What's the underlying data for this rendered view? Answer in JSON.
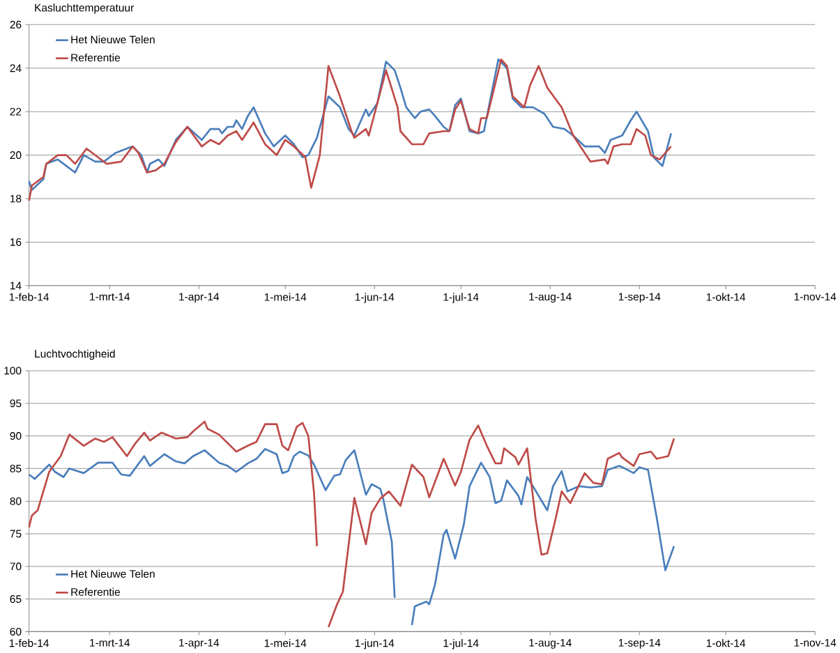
{
  "chart_data": [
    {
      "type": "line",
      "title": "Kasluchttemperatuur",
      "grid": "y",
      "legend": "top left",
      "xlim": [
        "2014-02-01",
        "2014-11-01"
      ],
      "xticks": [
        {
          "value": "2014-02-01",
          "label": "1-feb-14"
        },
        {
          "value": "2014-03-01",
          "label": "1-mrt-14"
        },
        {
          "value": "2014-04-01",
          "label": "1-apr-14"
        },
        {
          "value": "2014-05-01",
          "label": "1-mei-14"
        },
        {
          "value": "2014-06-01",
          "label": "1-jun-14"
        },
        {
          "value": "2014-07-01",
          "label": "1-jul-14"
        },
        {
          "value": "2014-08-01",
          "label": "1-aug-14"
        },
        {
          "value": "2014-09-01",
          "label": "1-sep-14"
        },
        {
          "value": "2014-10-01",
          "label": "1-okt-14"
        },
        {
          "value": "2014-11-01",
          "label": "1-nov-14"
        }
      ],
      "ylim": [
        14,
        26
      ],
      "yticks": [
        14,
        16,
        18,
        20,
        22,
        24,
        26
      ],
      "series": [
        {
          "name": "Het Nieuwe Telen",
          "color": "#4a7ebb",
          "x": [
            "2014-02-01",
            "2014-02-02",
            "2014-02-06",
            "2014-02-07",
            "2014-02-11",
            "2014-02-13",
            "2014-02-17",
            "2014-02-20",
            "2014-02-24",
            "2014-02-27",
            "2014-03-03",
            "2014-03-09",
            "2014-03-12",
            "2014-03-14",
            "2014-03-15",
            "2014-03-18",
            "2014-03-20",
            "2014-03-24",
            "2014-03-28",
            "2014-04-02",
            "2014-04-05",
            "2014-04-08",
            "2014-04-09",
            "2014-04-11",
            "2014-04-13",
            "2014-04-14",
            "2014-04-16",
            "2014-04-18",
            "2014-04-20",
            "2014-04-24",
            "2014-04-27",
            "2014-05-01",
            "2014-05-04",
            "2014-05-07",
            "2014-05-09",
            "2014-05-12",
            "2014-05-16",
            "2014-05-20",
            "2014-05-23",
            "2014-05-25",
            "2014-05-29",
            "2014-05-30",
            "2014-06-02",
            "2014-06-05",
            "2014-06-08",
            "2014-06-10",
            "2014-06-12",
            "2014-06-15",
            "2014-06-17",
            "2014-06-20",
            "2014-06-22",
            "2014-06-25",
            "2014-06-27",
            "2014-06-29",
            "2014-07-01",
            "2014-07-04",
            "2014-07-07",
            "2014-07-09",
            "2014-07-14",
            "2014-07-17",
            "2014-07-19",
            "2014-07-22",
            "2014-07-26",
            "2014-07-30",
            "2014-08-02",
            "2014-08-06",
            "2014-08-09",
            "2014-08-13",
            "2014-08-18",
            "2014-08-20",
            "2014-08-22",
            "2014-08-26",
            "2014-08-29",
            "2014-08-31",
            "2014-09-04",
            "2014-09-06",
            "2014-09-09",
            "2014-09-12"
          ],
          "values": [
            18.8,
            18.4,
            18.9,
            19.6,
            19.8,
            19.6,
            19.2,
            20.0,
            19.7,
            19.7,
            20.1,
            20.4,
            20.0,
            19.2,
            19.6,
            19.8,
            19.5,
            20.7,
            21.3,
            20.7,
            21.2,
            21.2,
            21.0,
            21.3,
            21.3,
            21.6,
            21.2,
            21.8,
            22.2,
            21.0,
            20.4,
            20.9,
            20.5,
            19.9,
            20.0,
            20.8,
            22.7,
            22.2,
            21.2,
            20.9,
            22.1,
            21.8,
            22.4,
            24.3,
            23.9,
            23.1,
            22.2,
            21.7,
            22.0,
            22.1,
            21.8,
            21.3,
            21.1,
            22.3,
            22.6,
            21.1,
            21.0,
            21.1,
            24.4,
            24.0,
            22.6,
            22.2,
            22.2,
            21.9,
            21.3,
            21.2,
            20.9,
            20.4,
            20.4,
            20.1,
            20.7,
            20.9,
            21.6,
            22.0,
            21.1,
            19.9,
            19.5,
            21.0
          ]
        },
        {
          "name": "Referentie",
          "color": "#be4b48",
          "x": [
            "2014-02-01",
            "2014-02-02",
            "2014-02-06",
            "2014-02-07",
            "2014-02-11",
            "2014-02-14",
            "2014-02-17",
            "2014-02-21",
            "2014-02-25",
            "2014-02-28",
            "2014-03-05",
            "2014-03-09",
            "2014-03-11",
            "2014-03-14",
            "2014-03-17",
            "2014-03-20",
            "2014-03-24",
            "2014-03-28",
            "2014-04-02",
            "2014-04-05",
            "2014-04-08",
            "2014-04-11",
            "2014-04-14",
            "2014-04-16",
            "2014-04-20",
            "2014-04-24",
            "2014-04-28",
            "2014-05-01",
            "2014-05-04",
            "2014-05-08",
            "2014-05-10",
            "2014-05-13",
            "2014-05-16",
            "2014-05-20",
            "2014-05-24",
            "2014-05-25",
            "2014-05-29",
            "2014-05-30",
            "2014-06-05",
            "2014-06-09",
            "2014-06-10",
            "2014-06-14",
            "2014-06-18",
            "2014-06-20",
            "2014-06-25",
            "2014-06-27",
            "2014-06-29",
            "2014-07-01",
            "2014-07-04",
            "2014-07-07",
            "2014-07-08",
            "2014-07-10",
            "2014-07-15",
            "2014-07-17",
            "2014-07-19",
            "2014-07-23",
            "2014-07-25",
            "2014-07-28",
            "2014-07-31",
            "2014-08-05",
            "2014-08-09",
            "2014-08-13",
            "2014-08-15",
            "2014-08-20",
            "2014-08-21",
            "2014-08-23",
            "2014-08-26",
            "2014-08-29",
            "2014-08-31",
            "2014-09-03",
            "2014-09-05",
            "2014-09-08",
            "2014-09-12"
          ],
          "values": [
            17.9,
            18.6,
            19.0,
            19.6,
            20.0,
            20.0,
            19.6,
            20.3,
            19.9,
            19.6,
            19.7,
            20.4,
            20.1,
            19.2,
            19.3,
            19.6,
            20.6,
            21.3,
            20.4,
            20.7,
            20.5,
            20.9,
            21.1,
            20.7,
            21.5,
            20.5,
            20.0,
            20.7,
            20.4,
            19.9,
            18.5,
            20.0,
            24.1,
            22.7,
            21.1,
            20.8,
            21.2,
            20.9,
            23.9,
            22.2,
            21.1,
            20.5,
            20.5,
            21.0,
            21.1,
            21.1,
            22.1,
            22.5,
            21.2,
            21.0,
            21.7,
            21.7,
            24.4,
            24.1,
            22.7,
            22.2,
            23.2,
            24.1,
            23.1,
            22.2,
            20.9,
            20.1,
            19.7,
            19.8,
            19.6,
            20.4,
            20.5,
            20.5,
            21.2,
            20.9,
            20.0,
            19.8,
            20.4
          ]
        }
      ]
    },
    {
      "type": "line",
      "title": "Luchtvochtigheid",
      "grid": "y",
      "legend": "bottom left",
      "xlim": [
        "2014-02-01",
        "2014-11-01"
      ],
      "xticks": [
        {
          "value": "2014-02-01",
          "label": "1-feb-14"
        },
        {
          "value": "2014-03-01",
          "label": "1-mrt-14"
        },
        {
          "value": "2014-04-01",
          "label": "1-apr-14"
        },
        {
          "value": "2014-05-01",
          "label": "1-mei-14"
        },
        {
          "value": "2014-06-01",
          "label": "1-jun-14"
        },
        {
          "value": "2014-07-01",
          "label": "1-jul-14"
        },
        {
          "value": "2014-08-01",
          "label": "1-aug-14"
        },
        {
          "value": "2014-09-01",
          "label": "1-sep-14"
        },
        {
          "value": "2014-10-01",
          "label": "1-okt-14"
        },
        {
          "value": "2014-11-01",
          "label": "1-nov-14"
        }
      ],
      "ylim": [
        60,
        100
      ],
      "yticks": [
        60,
        65,
        70,
        75,
        80,
        85,
        90,
        95,
        100
      ],
      "series": [
        {
          "name": "Het Nieuwe Telen",
          "color": "#4a7ebb",
          "x": [
            "2014-02-01",
            "2014-02-03",
            "2014-02-08",
            "2014-02-10",
            "2014-02-13",
            "2014-02-15",
            "2014-02-20",
            "2014-02-25",
            "2014-03-02",
            "2014-03-05",
            "2014-03-08",
            "2014-03-13",
            "2014-03-15",
            "2014-03-20",
            "2014-03-24",
            "2014-03-27",
            "2014-03-30",
            "2014-04-03",
            "2014-04-08",
            "2014-04-11",
            "2014-04-14",
            "2014-04-18",
            "2014-04-21",
            "2014-04-24",
            "2014-04-28",
            "2014-04-30",
            "2014-05-02",
            "2014-05-04",
            "2014-05-06",
            "2014-05-09",
            "2014-05-11",
            "2014-05-15",
            "2014-05-18",
            "2014-05-20",
            "2014-05-22",
            "2014-05-25",
            "2014-05-29",
            "2014-05-31",
            "2014-06-03",
            "2014-06-04",
            "2014-06-07",
            "2014-06-08",
            "2014-06-11",
            "2014-06-14",
            "2014-06-15",
            "2014-06-19",
            "2014-06-20",
            "2014-06-22",
            "2014-06-25",
            "2014-06-26",
            "2014-06-29",
            "2014-07-02",
            "2014-07-04",
            "2014-07-08",
            "2014-07-11",
            "2014-07-13",
            "2014-07-15",
            "2014-07-17",
            "2014-07-21",
            "2014-07-22",
            "2014-07-24",
            "2014-07-26",
            "2014-07-31",
            "2014-08-02",
            "2014-08-05",
            "2014-08-07",
            "2014-08-11",
            "2014-08-15",
            "2014-08-19",
            "2014-08-21",
            "2014-08-25",
            "2014-08-27",
            "2014-08-30",
            "2014-09-01",
            "2014-09-04",
            "2014-09-07",
            "2014-09-10",
            "2014-09-13"
          ],
          "values": [
            84.1,
            83.4,
            85.6,
            84.5,
            83.7,
            85.0,
            84.3,
            85.9,
            85.9,
            84.1,
            83.9,
            86.9,
            85.4,
            87.2,
            86.1,
            85.8,
            86.9,
            87.8,
            85.9,
            85.4,
            84.5,
            85.8,
            86.5,
            88.0,
            87.2,
            84.3,
            84.6,
            86.9,
            87.6,
            87.0,
            85.6,
            81.7,
            83.9,
            84.1,
            86.3,
            87.8,
            81.0,
            82.6,
            81.9,
            80.4,
            73.8,
            65.2,
            null,
            61.0,
            63.9,
            64.6,
            64.2,
            67.2,
            74.9,
            75.6,
            71.2,
            76.4,
            82.3,
            85.9,
            83.7,
            79.7,
            80.1,
            83.2,
            80.8,
            79.5,
            83.7,
            82.3,
            78.6,
            82.3,
            84.6,
            81.5,
            82.3,
            82.1,
            82.3,
            84.8,
            85.4,
            85.0,
            84.3,
            85.2,
            84.8,
            77.5,
            69.4,
            73.1
          ]
        },
        {
          "name": "Referentie",
          "color": "#be4b48",
          "x": [
            "2014-02-01",
            "2014-02-02",
            "2014-02-04",
            "2014-02-08",
            "2014-02-12",
            "2014-02-15",
            "2014-02-20",
            "2014-02-24",
            "2014-02-27",
            "2014-03-02",
            "2014-03-07",
            "2014-03-10",
            "2014-03-13",
            "2014-03-15",
            "2014-03-19",
            "2014-03-24",
            "2014-03-28",
            "2014-03-30",
            "2014-04-03",
            "2014-04-04",
            "2014-04-08",
            "2014-04-14",
            "2014-04-18",
            "2014-04-21",
            "2014-04-24",
            "2014-04-28",
            "2014-04-30",
            "2014-05-02",
            "2014-05-05",
            "2014-05-07",
            "2014-05-09",
            "2014-05-11",
            "2014-05-12",
            "2014-05-13",
            "2014-05-16",
            "2014-05-19",
            "2014-05-21",
            "2014-05-25",
            "2014-05-29",
            "2014-05-31",
            "2014-06-03",
            "2014-06-06",
            "2014-06-10",
            "2014-06-14",
            "2014-06-18",
            "2014-06-20",
            "2014-06-25",
            "2014-06-29",
            "2014-07-01",
            "2014-07-04",
            "2014-07-07",
            "2014-07-10",
            "2014-07-13",
            "2014-07-15",
            "2014-07-16",
            "2014-07-20",
            "2014-07-21",
            "2014-07-24",
            "2014-07-27",
            "2014-07-29",
            "2014-07-31",
            "2014-08-03",
            "2014-08-05",
            "2014-08-08",
            "2014-08-13",
            "2014-08-16",
            "2014-08-19",
            "2014-08-21",
            "2014-08-25",
            "2014-08-26",
            "2014-08-30",
            "2014-09-01",
            "2014-09-05",
            "2014-09-07",
            "2014-09-11",
            "2014-09-13"
          ],
          "values": [
            76.0,
            77.8,
            78.6,
            84.5,
            86.9,
            90.2,
            88.5,
            89.6,
            89.1,
            89.8,
            86.9,
            88.9,
            90.5,
            89.3,
            90.5,
            89.6,
            89.8,
            90.7,
            92.2,
            91.1,
            90.2,
            87.6,
            88.5,
            89.1,
            91.8,
            91.8,
            88.5,
            87.8,
            91.4,
            92.0,
            90.0,
            81.2,
            73.1,
            null,
            60.7,
            64.2,
            66.1,
            80.5,
            73.4,
            78.2,
            80.4,
            81.5,
            79.3,
            85.6,
            83.7,
            80.6,
            86.5,
            82.4,
            84.5,
            89.4,
            91.6,
            88.5,
            85.8,
            85.8,
            88.1,
            86.7,
            85.6,
            88.1,
            77.1,
            71.8,
            72.0,
            77.5,
            81.5,
            79.7,
            84.3,
            82.8,
            82.6,
            86.5,
            87.4,
            86.7,
            85.4,
            87.2,
            87.6,
            86.5,
            86.9,
            89.6
          ]
        }
      ]
    }
  ]
}
